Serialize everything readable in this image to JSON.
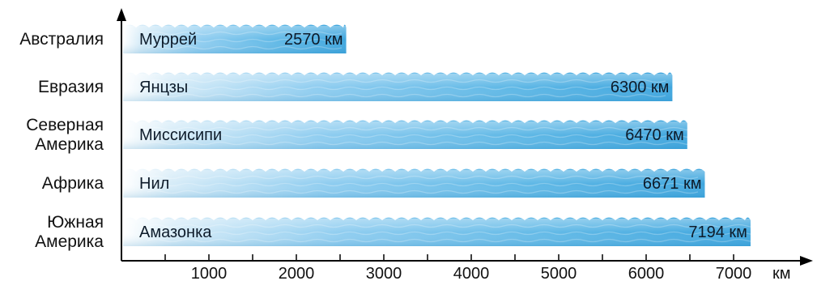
{
  "chart_data": {
    "type": "bar",
    "orientation": "horizontal",
    "categories": [
      [
        "Австралия"
      ],
      [
        "Евразия"
      ],
      [
        "Северная",
        "Америка"
      ],
      [
        "Африка"
      ],
      [
        "Южная",
        "Америка"
      ]
    ],
    "river_names": [
      "Муррей",
      "Янцзы",
      "Миссисипи",
      "Нил",
      "Амазонка"
    ],
    "values": [
      2570,
      6300,
      6470,
      6671,
      7194
    ],
    "value_labels": [
      "2570 км",
      "6300 км",
      "6470 км",
      "6671 км",
      "7194 км"
    ],
    "x_ticks": [
      1000,
      2000,
      3000,
      4000,
      5000,
      6000,
      7000
    ],
    "x_unit": "км",
    "xlim": [
      0,
      7000
    ],
    "grid": false,
    "bar_color": "#5fb8e6"
  }
}
